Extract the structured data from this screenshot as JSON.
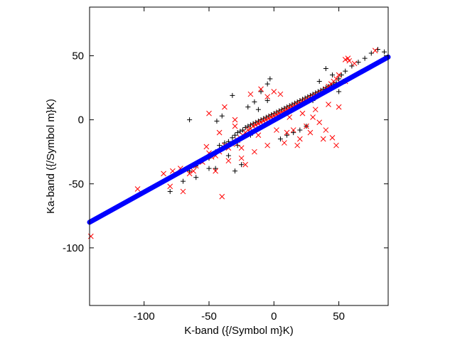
{
  "chart_data": {
    "type": "scatter",
    "title": "",
    "xlabel": "K-band ({/Symbol m}K)",
    "ylabel": "Ka-band ({/Symbol m}K)",
    "xlim": [
      -142,
      88
    ],
    "ylim": [
      -145,
      88
    ],
    "xticks": [
      -100,
      -50,
      0,
      50
    ],
    "yticks": [
      -100,
      -50,
      0,
      50
    ],
    "grid": false,
    "legend": "none",
    "series": [
      {
        "marker": "plus",
        "color": "#000000",
        "points": [
          [
            -80,
            -56
          ],
          [
            -70,
            -48
          ],
          [
            -65,
            -40
          ],
          [
            -60,
            -36
          ],
          [
            -55,
            -32
          ],
          [
            -50,
            -30
          ],
          [
            -47,
            -27
          ],
          [
            -45,
            -25
          ],
          [
            -42,
            -20
          ],
          [
            -40,
            -22
          ],
          [
            -38,
            -18
          ],
          [
            -35,
            -17
          ],
          [
            -32,
            -14
          ],
          [
            -30,
            -12
          ],
          [
            -28,
            -10
          ],
          [
            -26,
            -9
          ],
          [
            -24,
            -8
          ],
          [
            -22,
            -6
          ],
          [
            -20,
            -5
          ],
          [
            -18,
            -4
          ],
          [
            -16,
            -3
          ],
          [
            -14,
            -2
          ],
          [
            -12,
            -1
          ],
          [
            -10,
            0
          ],
          [
            -8,
            1
          ],
          [
            -6,
            2
          ],
          [
            -4,
            3
          ],
          [
            -2,
            4
          ],
          [
            0,
            5
          ],
          [
            2,
            6
          ],
          [
            4,
            7
          ],
          [
            6,
            8
          ],
          [
            8,
            9
          ],
          [
            10,
            10
          ],
          [
            12,
            11
          ],
          [
            14,
            12
          ],
          [
            16,
            13
          ],
          [
            18,
            14
          ],
          [
            20,
            15
          ],
          [
            22,
            16
          ],
          [
            24,
            17
          ],
          [
            26,
            18
          ],
          [
            28,
            19
          ],
          [
            30,
            20
          ],
          [
            32,
            21
          ],
          [
            34,
            22
          ],
          [
            36,
            23
          ],
          [
            38,
            24
          ],
          [
            40,
            25
          ],
          [
            42,
            26
          ],
          [
            44,
            27
          ],
          [
            46,
            28
          ],
          [
            48,
            29
          ],
          [
            50,
            32
          ],
          [
            52,
            35
          ],
          [
            55,
            38
          ],
          [
            60,
            42
          ],
          [
            65,
            45
          ],
          [
            70,
            48
          ],
          [
            75,
            52
          ],
          [
            80,
            55
          ],
          [
            85,
            53
          ],
          [
            -10,
            22
          ],
          [
            -5,
            28
          ],
          [
            -3,
            32
          ],
          [
            -32,
            19
          ],
          [
            -40,
            3
          ],
          [
            -44,
            -1
          ],
          [
            -65,
            0
          ],
          [
            -20,
            10
          ],
          [
            -15,
            14
          ],
          [
            -25,
            -35
          ],
          [
            -30,
            -40
          ],
          [
            -45,
            -38
          ],
          [
            15,
            -10
          ],
          [
            20,
            -8
          ],
          [
            25,
            -5
          ],
          [
            10,
            -12
          ],
          [
            5,
            -15
          ],
          [
            30,
            15
          ],
          [
            35,
            30
          ],
          [
            40,
            40
          ],
          [
            45,
            35
          ],
          [
            50,
            22
          ],
          [
            55,
            30
          ],
          [
            -5,
            15
          ],
          [
            -12,
            8
          ],
          [
            -18,
            -12
          ],
          [
            -28,
            -20
          ],
          [
            -35,
            -28
          ],
          [
            -50,
            -38
          ],
          [
            -60,
            -45
          ]
        ]
      },
      {
        "marker": "x",
        "color": "#ff0000",
        "points": [
          [
            -141,
            -91
          ],
          [
            -105,
            -54
          ],
          [
            -85,
            -42
          ],
          [
            -80,
            -52
          ],
          [
            -78,
            -40
          ],
          [
            -72,
            -38
          ],
          [
            -70,
            -56
          ],
          [
            -65,
            -42
          ],
          [
            -60,
            -36
          ],
          [
            -55,
            -33
          ],
          [
            -52,
            -21
          ],
          [
            -50,
            -26
          ],
          [
            -48,
            -29
          ],
          [
            -45,
            -28
          ],
          [
            -42,
            -25
          ],
          [
            -40,
            -60
          ],
          [
            -38,
            -20
          ],
          [
            -35,
            -22
          ],
          [
            -32,
            -19
          ],
          [
            -30,
            -18
          ],
          [
            -28,
            -16
          ],
          [
            -26,
            -14
          ],
          [
            -24,
            -12
          ],
          [
            -22,
            -10
          ],
          [
            -20,
            -8
          ],
          [
            -18,
            -7
          ],
          [
            -16,
            -5
          ],
          [
            -14,
            -4
          ],
          [
            -12,
            -3
          ],
          [
            -10,
            -2
          ],
          [
            -8,
            -1
          ],
          [
            -6,
            0
          ],
          [
            -4,
            1
          ],
          [
            -2,
            2
          ],
          [
            0,
            3
          ],
          [
            2,
            4
          ],
          [
            4,
            5
          ],
          [
            6,
            6
          ],
          [
            8,
            7
          ],
          [
            10,
            8
          ],
          [
            12,
            9
          ],
          [
            14,
            10
          ],
          [
            16,
            11
          ],
          [
            18,
            12
          ],
          [
            20,
            13
          ],
          [
            22,
            14
          ],
          [
            24,
            15
          ],
          [
            26,
            16
          ],
          [
            28,
            17
          ],
          [
            30,
            18
          ],
          [
            32,
            19
          ],
          [
            34,
            20
          ],
          [
            36,
            21
          ],
          [
            38,
            22
          ],
          [
            40,
            24
          ],
          [
            42,
            26
          ],
          [
            44,
            28
          ],
          [
            46,
            30
          ],
          [
            48,
            32
          ],
          [
            50,
            35
          ],
          [
            55,
            30
          ],
          [
            58,
            46
          ],
          [
            62,
            44
          ],
          [
            78,
            54
          ],
          [
            57,
            48
          ],
          [
            55,
            47
          ],
          [
            -50,
            5
          ],
          [
            -38,
            10
          ],
          [
            -30,
            0
          ],
          [
            -25,
            -30
          ],
          [
            -22,
            -35
          ],
          [
            -18,
            20
          ],
          [
            -10,
            24
          ],
          [
            -5,
            18
          ],
          [
            0,
            22
          ],
          [
            5,
            20
          ],
          [
            10,
            -10
          ],
          [
            15,
            -8
          ],
          [
            20,
            -15
          ],
          [
            25,
            -5
          ],
          [
            30,
            2
          ],
          [
            35,
            -2
          ],
          [
            40,
            -8
          ],
          [
            45,
            -14
          ],
          [
            48,
            -20
          ],
          [
            38,
            -15
          ],
          [
            28,
            -10
          ],
          [
            18,
            -20
          ],
          [
            8,
            -18
          ],
          [
            -5,
            -20
          ],
          [
            -15,
            -25
          ],
          [
            -25,
            -22
          ],
          [
            -35,
            -32
          ],
          [
            -45,
            -40
          ],
          [
            -62,
            -40
          ],
          [
            -12,
            -12
          ],
          [
            2,
            -8
          ],
          [
            12,
            2
          ],
          [
            22,
            5
          ],
          [
            32,
            8
          ],
          [
            42,
            12
          ],
          [
            50,
            10
          ],
          [
            -42,
            -10
          ],
          [
            -30,
            -5
          ]
        ]
      },
      {
        "marker": "dot",
        "color": "#0000ff",
        "note": "fit",
        "x": [
          -142,
          88
        ],
        "y": [
          -80,
          49
        ]
      }
    ]
  }
}
